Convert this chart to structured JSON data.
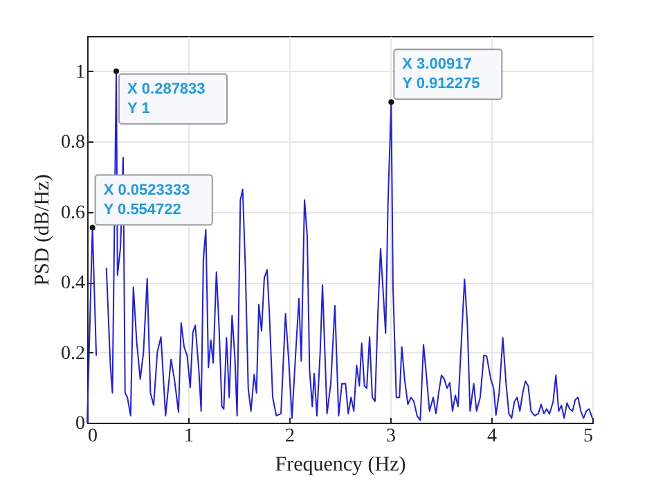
{
  "chart_data": {
    "type": "line",
    "xlabel": "Frequency (Hz)",
    "ylabel": "PSD (dB/Hz)",
    "xlim": [
      0,
      5
    ],
    "ylim": [
      0,
      1.1
    ],
    "xticks": [
      0,
      1,
      2,
      3,
      4,
      5
    ],
    "yticks": [
      0,
      0.2,
      0.4,
      0.6,
      0.8,
      1
    ],
    "grid": true,
    "marker": "none",
    "line_style": "solid",
    "series": [
      {
        "color": "#1f1fe6",
        "x": [
          0,
          0.052,
          0.09,
          0.14,
          0.19,
          0.23,
          0.25,
          0.288,
          0.3,
          0.33,
          0.356,
          0.375,
          0.398,
          0.43,
          0.457,
          0.49,
          0.525,
          0.557,
          0.594,
          0.626,
          0.658,
          0.694,
          0.73,
          0.776,
          0.83,
          0.863,
          0.904,
          0.93,
          0.959,
          0.99,
          1.02,
          1.046,
          1.07,
          1.105,
          1.128,
          1.15,
          1.174,
          1.2,
          1.224,
          1.247,
          1.279,
          1.306,
          1.333,
          1.352,
          1.379,
          1.406,
          1.434,
          1.461,
          1.484,
          1.516,
          1.539,
          1.566,
          1.594,
          1.621,
          1.653,
          1.676,
          1.699,
          1.726,
          1.753,
          1.781,
          1.804,
          1.836,
          1.872,
          1.918,
          1.963,
          1.995,
          2.027,
          2.064,
          2.096,
          2.119,
          2.151,
          2.178,
          2.201,
          2.228,
          2.247,
          2.274,
          2.306,
          2.329,
          2.374,
          2.411,
          2.452,
          2.489,
          2.521,
          2.557,
          2.584,
          2.612,
          2.639,
          2.667,
          2.694,
          2.717,
          2.744,
          2.767,
          2.795,
          2.822,
          2.849,
          2.877,
          2.904,
          2.932,
          2.954,
          2.977,
          3.009,
          3.027,
          3.06,
          3.091,
          3.114,
          3.142,
          3.174,
          3.205,
          3.233,
          3.265,
          3.297,
          3.329,
          3.361,
          3.388,
          3.425,
          3.452,
          3.479,
          3.507,
          3.534,
          3.562,
          3.589,
          3.616,
          3.644,
          3.671,
          3.708,
          3.735,
          3.763,
          3.79,
          3.826,
          3.854,
          3.89,
          3.927,
          3.954,
          3.995,
          4.023,
          4.046,
          4.078,
          4.114,
          4.146,
          4.174,
          4.201,
          4.228,
          4.256,
          4.283,
          4.311,
          4.338,
          4.365,
          4.393,
          4.429,
          4.466,
          4.493,
          4.521,
          4.548,
          4.575,
          4.612,
          4.639,
          4.667,
          4.694,
          4.721,
          4.749,
          4.776,
          4.804,
          4.831,
          4.858,
          4.886,
          4.913,
          4.941,
          4.968,
          5
        ],
        "values": [
          0,
          0.555,
          0.19,
          null,
          0.44,
          0.16,
          0.085,
          1,
          0.42,
          0.5,
          0.754,
          0.085,
          0.072,
          0.02,
          0.386,
          0.23,
          0.124,
          0.2,
          0.41,
          0.085,
          0.05,
          0.2,
          0.244,
          0.02,
          0.18,
          0.124,
          0.03,
          0.284,
          0.216,
          0.19,
          0.1,
          0.257,
          0.277,
          0.15,
          0.033,
          0.464,
          0.549,
          0.157,
          0.235,
          0.17,
          0.429,
          0.268,
          0.046,
          0.039,
          0.242,
          0.072,
          0.305,
          0.19,
          0.02,
          0.634,
          0.664,
          0.438,
          0.098,
          0.033,
          0.137,
          0.085,
          0.336,
          0.261,
          0.412,
          0.435,
          0.307,
          0.072,
          0.02,
          0.026,
          0.31,
          0.176,
          0.013,
          0.2,
          0.353,
          0.176,
          0.634,
          0.53,
          0.15,
          0.046,
          0.14,
          0.02,
          0.2,
          0.392,
          0.026,
          0.111,
          0.333,
          0.02,
          0.111,
          0.111,
          0.026,
          0.072,
          0.033,
          0.163,
          0.105,
          0.226,
          0.105,
          0.098,
          0.244,
          0.072,
          0.061,
          0.307,
          0.495,
          0.359,
          0.255,
          0.621,
          0.912,
          0.386,
          0.072,
          0.072,
          0.216,
          0.124,
          0.052,
          0.072,
          0.061,
          0.02,
          0.007,
          0.222,
          0.124,
          0.033,
          0.072,
          0.026,
          0.085,
          0.135,
          0.124,
          0.098,
          0.114,
          0.033,
          0.078,
          0.046,
          0.255,
          0.408,
          0.281,
          0.033,
          0.111,
          0.033,
          0.072,
          0.192,
          0.189,
          0.124,
          0.098,
          0.022,
          0.085,
          0.242,
          0.111,
          0.026,
          0.013,
          0.059,
          0.072,
          0.033,
          0.085,
          0.118,
          0.105,
          0.033,
          0.02,
          0.026,
          0.052,
          0.026,
          0.039,
          0.025,
          0.059,
          0.135,
          0.033,
          0.049,
          0.013,
          0.056,
          0.039,
          0.033,
          0.065,
          0.072,
          0.033,
          0.013,
          0.033,
          0.039,
          0.013
        ]
      }
    ],
    "annotations": [
      {
        "text": "X 0.287833\nY 1",
        "x": 0.287833,
        "y": 1
      },
      {
        "text": "X 0.0523333\nY 0.554722",
        "x": 0.0523333,
        "y": 0.554722
      },
      {
        "text": "X 3.00917\nY 0.912275",
        "x": 3.00917,
        "y": 0.912275
      }
    ]
  }
}
